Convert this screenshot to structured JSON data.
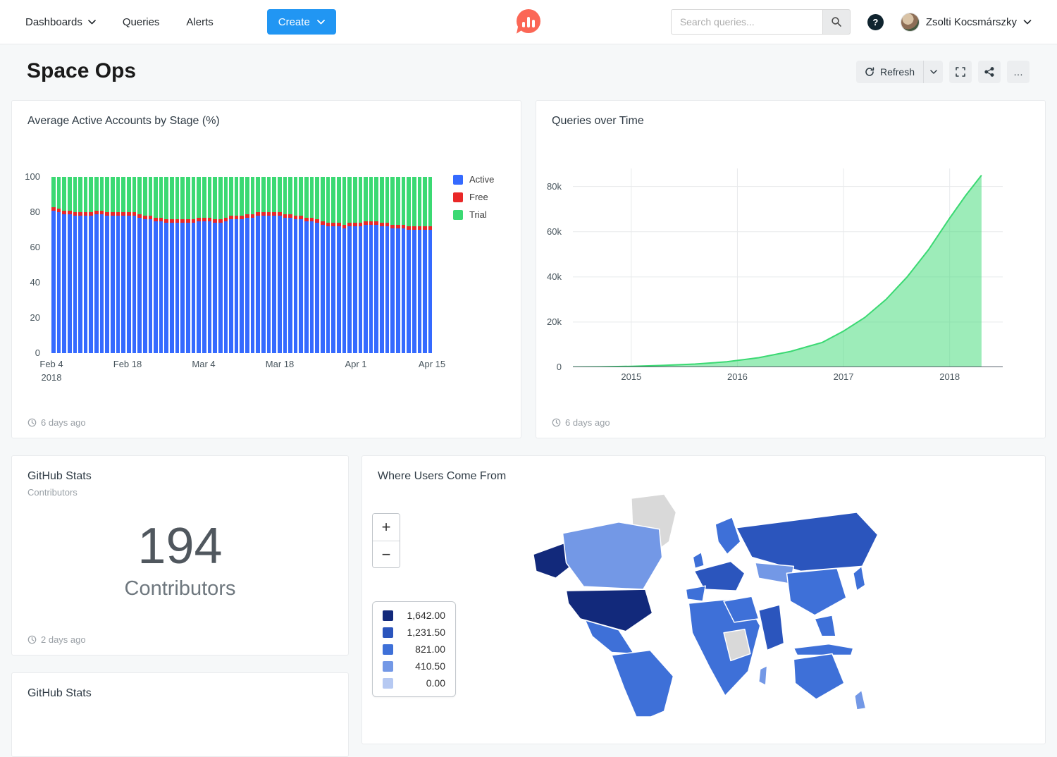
{
  "navbar": {
    "dashboards_label": "Dashboards",
    "queries_label": "Queries",
    "alerts_label": "Alerts",
    "create_label": "Create",
    "search_placeholder": "Search queries...",
    "help_glyph": "?",
    "user_name": "Zsolti Kocsmárszky"
  },
  "page": {
    "title": "Space Ops",
    "refresh_label": "Refresh",
    "ellipsis_glyph": "…"
  },
  "widgets": {
    "bar": {
      "title": "Average Active Accounts by Stage (%)",
      "updated": "6 days ago"
    },
    "area": {
      "title": "Queries over Time",
      "updated": "6 days ago"
    },
    "counter": {
      "title": "GitHub Stats",
      "subtitle": "Contributors",
      "updated": "2 days ago"
    },
    "map": {
      "title": "Where Users Come From",
      "zoom_in_glyph": "+",
      "zoom_out_glyph": "−"
    },
    "partial": {
      "title": "GitHub Stats"
    }
  },
  "colors": {
    "accent_blue": "#2196f3",
    "logo_coral": "#fb6756"
  },
  "chart_data": [
    {
      "type": "bar",
      "stacked": true,
      "title": "Average Active Accounts by Stage (%)",
      "ylim": [
        0,
        100
      ],
      "y_ticks": [
        0,
        20,
        40,
        60,
        80,
        100
      ],
      "x_tick_index": [
        0,
        14,
        28,
        42,
        56,
        70
      ],
      "x_tick_labels": [
        [
          "Feb 4",
          "2018"
        ],
        [
          "Feb 18"
        ],
        [
          "Mar 4"
        ],
        [
          "Mar 18"
        ],
        [
          "Apr 1"
        ],
        [
          "Apr 15"
        ]
      ],
      "legend_position": "right",
      "series": [
        {
          "name": "Active",
          "color": "#356aff",
          "values": [
            81,
            80,
            79,
            79,
            78,
            78,
            78,
            78,
            79,
            79,
            78,
            78,
            78,
            78,
            78,
            78,
            77,
            76,
            76,
            75,
            75,
            74,
            74,
            74,
            74,
            74,
            74,
            75,
            75,
            75,
            74,
            74,
            75,
            76,
            76,
            76,
            77,
            77,
            78,
            78,
            78,
            78,
            78,
            77,
            77,
            76,
            76,
            75,
            75,
            74,
            73,
            72,
            72,
            72,
            71,
            72,
            72,
            72,
            73,
            73,
            73,
            72,
            72,
            71,
            71,
            71,
            70,
            70,
            70,
            70,
            70
          ]
        },
        {
          "name": "Free",
          "color": "#e92828",
          "value_all_days": 2
        },
        {
          "name": "Trial",
          "color": "#3bd973",
          "values_rule": "remainder to 100"
        }
      ]
    },
    {
      "type": "area",
      "title": "Queries over Time",
      "x": [
        2014.45,
        2014.7,
        2015,
        2015.3,
        2015.6,
        2015.9,
        2016.2,
        2016.5,
        2016.8,
        2017,
        2017.2,
        2017.4,
        2017.6,
        2017.8,
        2018,
        2018.15,
        2018.3
      ],
      "y": [
        50,
        150,
        400,
        800,
        1400,
        2400,
        4200,
        7000,
        11000,
        16000,
        22000,
        30000,
        40000,
        52000,
        66000,
        76000,
        85000
      ],
      "xlim": [
        2014.45,
        2018.5
      ],
      "ylim": [
        0,
        88000
      ],
      "x_ticks": [
        2015,
        2016,
        2017,
        2018
      ],
      "y_ticks": [
        0,
        20000,
        40000,
        60000,
        80000
      ],
      "y_tick_labels": [
        "0",
        "20k",
        "40k",
        "60k",
        "80k"
      ],
      "line_color": "#3bd973",
      "fill_color": "rgba(59,217,115,0.5)",
      "grid": true
    },
    {
      "type": "counter",
      "title": "GitHub Stats",
      "value": 194,
      "display": "194",
      "label": "Contributors"
    },
    {
      "type": "choropleth",
      "title": "Where Users Come From",
      "no_data_color": "#d9d9d9",
      "legend": [
        {
          "label": "1,642.00",
          "color": "#12297b"
        },
        {
          "label": "1,231.50",
          "color": "#2b55bd"
        },
        {
          "label": "821.00",
          "color": "#3e70d8"
        },
        {
          "label": "410.50",
          "color": "#7398e6"
        },
        {
          "label": "0.00",
          "color": "#b6c9f2"
        }
      ]
    }
  ]
}
